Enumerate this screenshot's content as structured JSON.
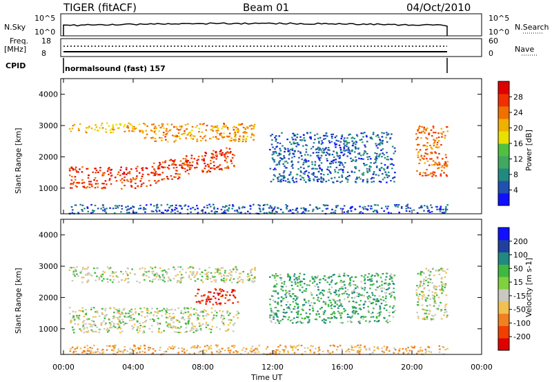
{
  "header": {
    "station": "TIGER (fitACF)",
    "beam": "Beam 01",
    "date": "04/Oct/2010"
  },
  "strip_labels": {
    "nsky": "N.Sky",
    "nsky_ticks": [
      "10^5",
      "10^0"
    ],
    "freq": "Freq.",
    "freq_unit": "[MHz]",
    "freq_ticks": [
      "18",
      "8"
    ],
    "cpid": "CPID",
    "cpid_value": "normalsound (fast) 157",
    "nsearch": "N.Search",
    "nsearch_ticks": [
      "10^5",
      "10^0"
    ],
    "nave": "Nave",
    "nave_ticks": [
      "60",
      "0"
    ]
  },
  "chart_data": [
    {
      "type": "heatmap",
      "name": "power",
      "ylabel": "Slant Range [km]",
      "xlabel": "Time UT",
      "xlim": [
        "00:00",
        "24:00"
      ],
      "ylim": [
        180,
        4500
      ],
      "x_ticks": [
        "00:00",
        "04:00",
        "08:00",
        "12:00",
        "16:00",
        "20:00",
        "00:00"
      ],
      "y_ticks": [
        1000,
        2000,
        3000,
        4000
      ],
      "colorbar": {
        "label": "Power [dB]",
        "ticks": [
          4,
          8,
          12,
          16,
          20,
          24,
          28
        ],
        "colors": [
          "#1010ff",
          "#2050b0",
          "#208a80",
          "#40a860",
          "#50c040",
          "#e8e000",
          "#f0b000",
          "#f07000",
          "#f03000",
          "#e00000"
        ]
      },
      "regions": [
        {
          "t": [
            0.3,
            9.8
          ],
          "range": [
            1000,
            1700
          ],
          "value": 27
        },
        {
          "t": [
            0.3,
            4.5
          ],
          "range": [
            2800,
            3100
          ],
          "value": 20
        },
        {
          "t": [
            4.5,
            11.0
          ],
          "range": [
            2500,
            3100
          ],
          "value": 22
        },
        {
          "t": [
            11.8,
            19.0
          ],
          "range": [
            1200,
            2800
          ],
          "value": 6
        },
        {
          "t": [
            20.2,
            22.0
          ],
          "range": [
            1400,
            3000
          ],
          "value": 24
        },
        {
          "t": [
            0.3,
            22.0
          ],
          "range": [
            200,
            500
          ],
          "value": 5
        }
      ]
    },
    {
      "type": "heatmap",
      "name": "velocity",
      "ylabel": "Slant Range [km]",
      "xlabel": "Time UT",
      "xlim": [
        "00:00",
        "24:00"
      ],
      "ylim": [
        180,
        4500
      ],
      "x_ticks": [
        "00:00",
        "04:00",
        "08:00",
        "12:00",
        "16:00",
        "20:00",
        "00:00"
      ],
      "y_ticks": [
        1000,
        2000,
        3000,
        4000
      ],
      "colorbar": {
        "label": "Velocity [m s-1]",
        "ticks": [
          200,
          100,
          50,
          15,
          -15,
          -50,
          -100,
          -200
        ],
        "colors": [
          "#1010ff",
          "#2040a0",
          "#208a80",
          "#40b840",
          "#80d040",
          "#c8c8c0",
          "#f0c050",
          "#f08020",
          "#f04000",
          "#e00000"
        ]
      },
      "regions": [
        {
          "t": [
            0.3,
            10.0
          ],
          "range": [
            900,
            1700
          ],
          "value": 0
        },
        {
          "t": [
            0.3,
            11.0
          ],
          "range": [
            2500,
            3000
          ],
          "value": 0
        },
        {
          "t": [
            7.5,
            10.0
          ],
          "range": [
            1800,
            2300
          ],
          "value": -200
        },
        {
          "t": [
            11.8,
            19.0
          ],
          "range": [
            1200,
            2800
          ],
          "value": 40
        },
        {
          "t": [
            20.2,
            22.0
          ],
          "range": [
            1300,
            3000
          ],
          "value": 0
        },
        {
          "t": [
            0.3,
            22.0
          ],
          "range": [
            200,
            500
          ],
          "value": -40
        }
      ]
    }
  ],
  "time_axis_label": "Time UT",
  "x_tick_labels": [
    "00:00",
    "04:00",
    "08:00",
    "12:00",
    "16:00",
    "20:00",
    "00:00"
  ]
}
